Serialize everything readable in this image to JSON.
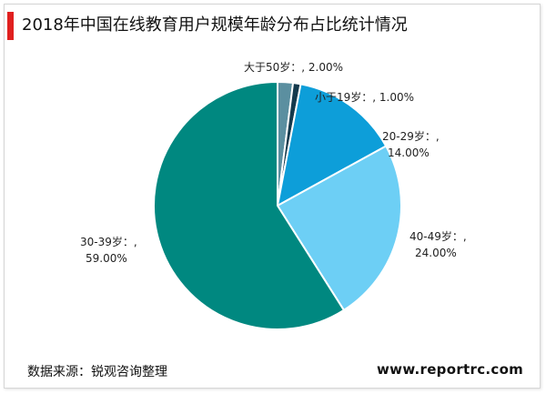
{
  "title": "2018年中国在线教育用户规模年龄分布占比统计情况",
  "source": "数据来源：锐观咨询整理",
  "website": "www.reportrc.com",
  "colors": {
    "title_accent": "#e0201f",
    "slice_50plus": "#5b8fa0",
    "slice_under19": "#153a4d",
    "slice_20_29": "#0d9ed9",
    "slice_40_49": "#6dcff5",
    "slice_30_39": "#008880"
  },
  "chart_data": {
    "type": "pie",
    "title": "2018年中国在线教育用户规模年龄分布占比统计情况",
    "start": "12 o'clock, clockwise",
    "slices": [
      {
        "name": "大于50岁",
        "value": 2.0,
        "line1": "大于50岁：, 2.00%",
        "line2": ""
      },
      {
        "name": "小于19岁",
        "value": 1.0,
        "line1": "小于19岁：, 1.00%",
        "line2": ""
      },
      {
        "name": "20-29岁",
        "value": 14.0,
        "line1": "20-29岁：,",
        "line2": "14.00%"
      },
      {
        "name": "40-49岁",
        "value": 24.0,
        "line1": "40-49岁：,",
        "line2": "24.00%"
      },
      {
        "name": "30-39岁",
        "value": 59.0,
        "line1": "30-39岁：,",
        "line2": "59.00%"
      }
    ]
  }
}
